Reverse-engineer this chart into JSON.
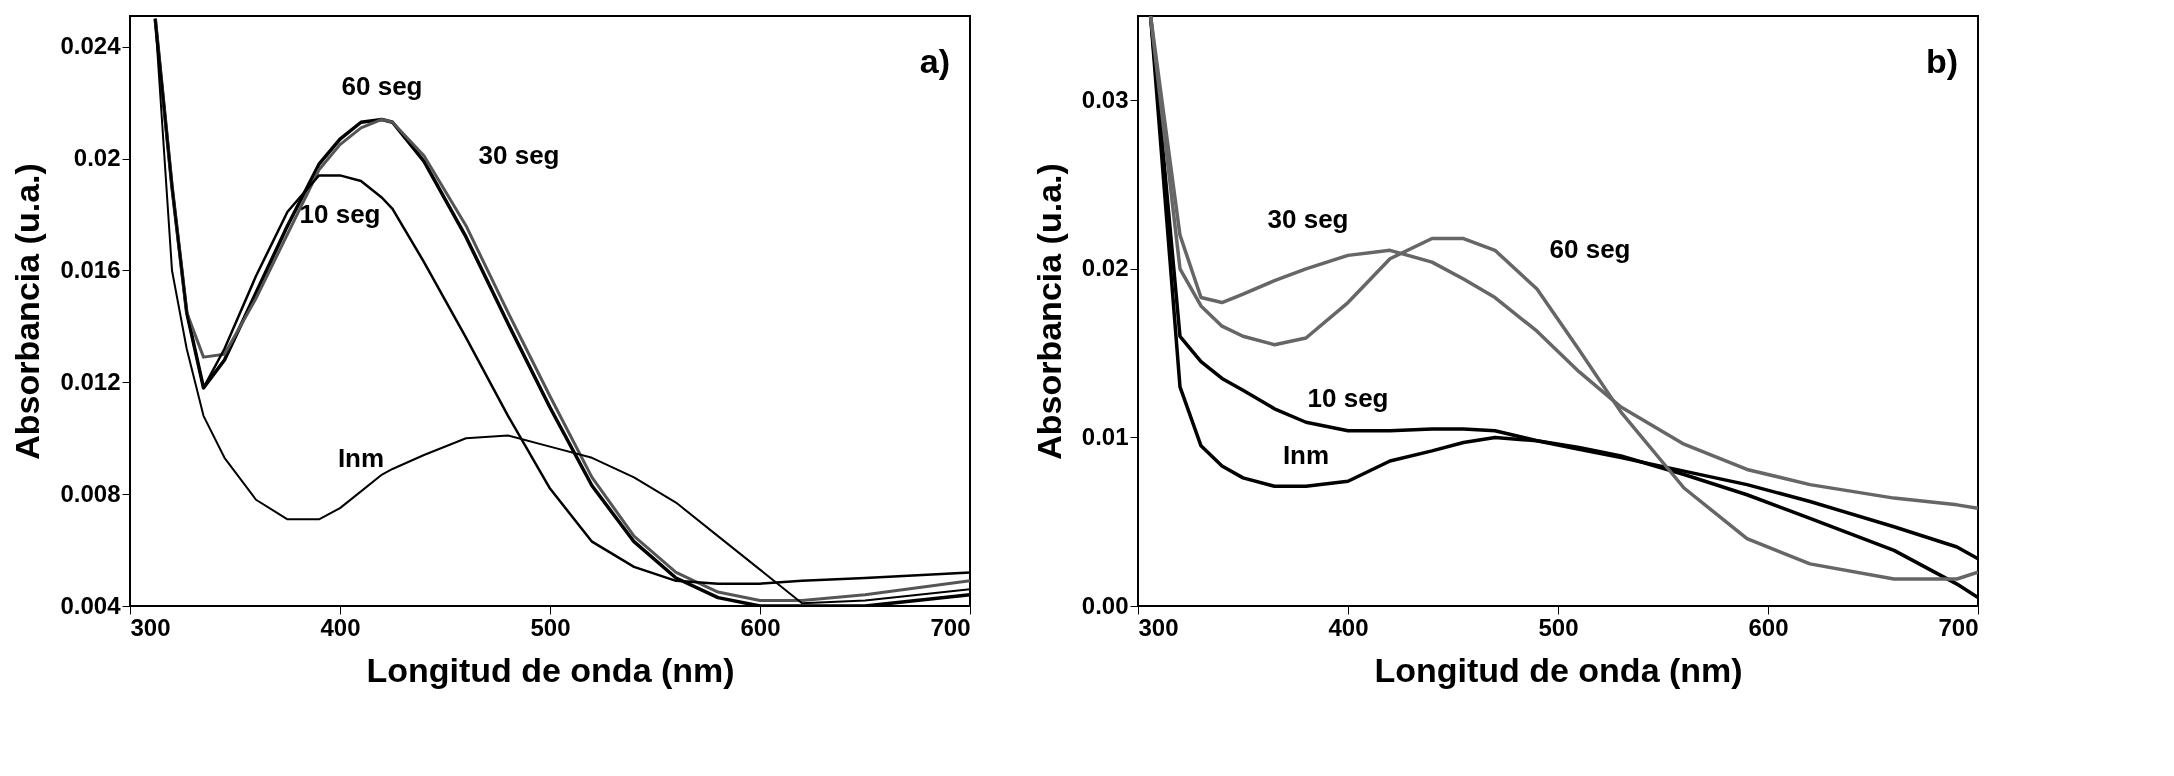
{
  "chart_data": [
    {
      "type": "line",
      "xlabel": "Longitud de onda (nm)",
      "ylabel": "Absorbancia (u.a.)",
      "xlim": [
        300,
        700
      ],
      "xticks": [
        300,
        400,
        500,
        600,
        700
      ],
      "ylim": [
        0.004,
        0.0251
      ],
      "yticks": [
        0.004,
        0.008,
        0.012,
        0.016,
        0.02,
        0.024
      ],
      "grid": false,
      "legend": false,
      "x": [
        312,
        320,
        327,
        335,
        345,
        360,
        375,
        390,
        400,
        410,
        420,
        425,
        440,
        460,
        480,
        500,
        520,
        540,
        560,
        580,
        600,
        620,
        650,
        700
      ],
      "series": [
        {
          "name": "60 seg",
          "color": "#000000",
          "values": [
            0.025,
            0.019,
            0.0145,
            0.0118,
            0.0128,
            0.0152,
            0.0176,
            0.0198,
            0.0207,
            0.0213,
            0.0214,
            0.0213,
            0.0199,
            0.0172,
            0.0141,
            0.0111,
            0.0083,
            0.0063,
            0.005,
            0.0043,
            0.004,
            0.004,
            0.004,
            0.0044
          ]
        },
        {
          "name": "30 seg",
          "color": "#555555",
          "values": [
            0.025,
            0.019,
            0.0145,
            0.0129,
            0.013,
            0.015,
            0.0173,
            0.0196,
            0.0205,
            0.0211,
            0.0214,
            0.0213,
            0.0201,
            0.0176,
            0.0145,
            0.0115,
            0.0086,
            0.0065,
            0.0052,
            0.0045,
            0.0042,
            0.0042,
            0.0044,
            0.0049
          ]
        },
        {
          "name": "10 seg",
          "color": "#000000",
          "values": [
            0.025,
            0.019,
            0.0145,
            0.0118,
            0.0132,
            0.0158,
            0.0181,
            0.0194,
            0.0194,
            0.0192,
            0.0186,
            0.0182,
            0.0163,
            0.0136,
            0.0108,
            0.0082,
            0.0063,
            0.0054,
            0.0049,
            0.0048,
            0.0048,
            0.0049,
            0.005,
            0.0052
          ]
        },
        {
          "name": "Inm",
          "color": "#000000",
          "values": [
            0.025,
            0.016,
            0.0132,
            0.0108,
            0.0093,
            0.0078,
            0.0071,
            0.0071,
            0.0075,
            0.0081,
            0.0087,
            0.0089,
            0.0094,
            0.01,
            0.0101,
            0.0097,
            0.0093,
            0.0086,
            0.0077,
            0.0065,
            0.0053,
            0.0041,
            0.0042,
            0.0046
          ]
        }
      ],
      "annotations": [
        "a)"
      ]
    },
    {
      "type": "line",
      "xlabel": "Longitud de onda (nm)",
      "ylabel": "Absorbancia (u.a.)",
      "xlim": [
        300,
        700
      ],
      "xticks": [
        300,
        400,
        500,
        600,
        700
      ],
      "ylim": [
        0,
        0.035
      ],
      "yticks": [
        {
          "value": 0,
          "label": "0.00"
        },
        0.01,
        0.02,
        0.03
      ],
      "grid": false,
      "legend": false,
      "x": [
        306,
        320,
        330,
        340,
        350,
        365,
        380,
        400,
        420,
        440,
        455,
        470,
        490,
        510,
        530,
        560,
        590,
        620,
        660,
        690,
        700
      ],
      "series": [
        {
          "name": "Inm",
          "color": "#000000",
          "values": [
            0.035,
            0.013,
            0.0095,
            0.0083,
            0.0076,
            0.0071,
            0.0071,
            0.0074,
            0.0086,
            0.0092,
            0.0097,
            0.01,
            0.0098,
            0.0094,
            0.0089,
            0.0078,
            0.0066,
            0.0052,
            0.0033,
            0.0013,
            0.0005
          ]
        },
        {
          "name": "10 seg",
          "color": "#000000",
          "values": [
            0.035,
            0.016,
            0.0145,
            0.0135,
            0.0128,
            0.0117,
            0.0109,
            0.0104,
            0.0104,
            0.0105,
            0.0105,
            0.0104,
            0.0098,
            0.0093,
            0.0088,
            0.008,
            0.0072,
            0.0062,
            0.0047,
            0.0035,
            0.0028
          ]
        },
        {
          "name": "30 seg",
          "color": "#666666",
          "values": [
            0.035,
            0.022,
            0.0183,
            0.018,
            0.0185,
            0.0193,
            0.02,
            0.0208,
            0.0211,
            0.0204,
            0.0194,
            0.0183,
            0.0163,
            0.0139,
            0.0118,
            0.0096,
            0.0081,
            0.0072,
            0.0064,
            0.006,
            0.0058
          ]
        },
        {
          "name": "60 seg",
          "color": "#666666",
          "values": [
            0.035,
            0.02,
            0.0178,
            0.0166,
            0.016,
            0.0155,
            0.0159,
            0.018,
            0.0206,
            0.0218,
            0.0218,
            0.0211,
            0.0188,
            0.0152,
            0.0115,
            0.007,
            0.004,
            0.0025,
            0.0016,
            0.0016,
            0.002
          ]
        }
      ],
      "annotations": [
        "b)"
      ]
    }
  ]
}
